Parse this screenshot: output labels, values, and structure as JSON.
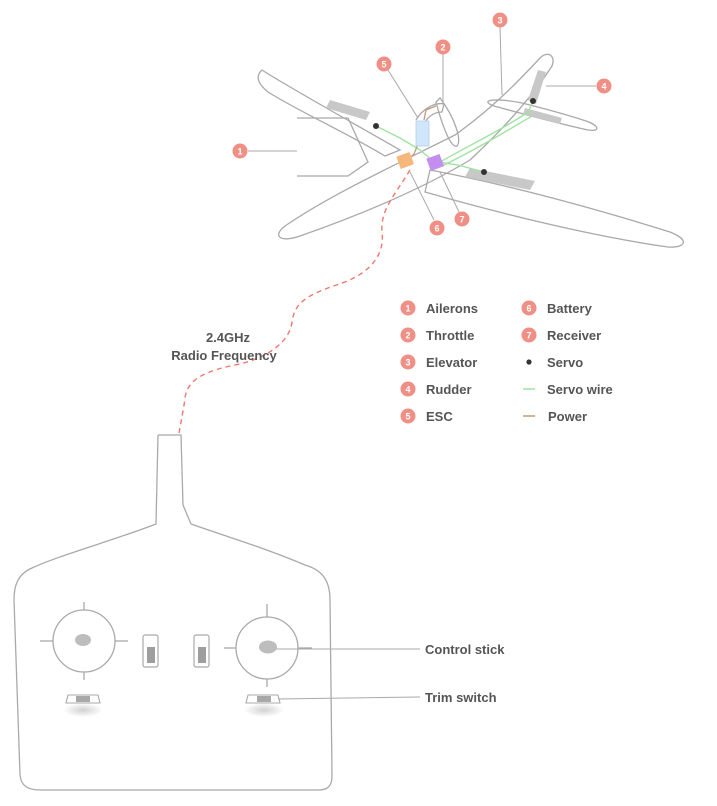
{
  "colors": {
    "badge": "#f08f86",
    "servo_wire": "#9fe3a0",
    "power": "#c49a7c",
    "radio_link": "#f0776e",
    "outline": "#a9a9a9",
    "esc": "#cfe6fb",
    "battery": "#f6b77a",
    "receiver": "#c48ef0",
    "surface": "#c8c8c8"
  },
  "radio": {
    "line1": "2.4GHz",
    "line2": "Radio Frequency"
  },
  "legend": {
    "items": [
      {
        "num": "1",
        "label": "Ailerons"
      },
      {
        "num": "2",
        "label": "Throttle"
      },
      {
        "num": "3",
        "label": "Elevator"
      },
      {
        "num": "4",
        "label": "Rudder"
      },
      {
        "num": "5",
        "label": "ESC"
      },
      {
        "num": "6",
        "label": "Battery"
      },
      {
        "num": "7",
        "label": "Receiver"
      }
    ],
    "servo": "Servo",
    "servo_wire": "Servo wire",
    "power": "Power"
  },
  "callouts": {
    "ailerons": "1",
    "throttle": "2",
    "elevator": "3",
    "rudder": "4",
    "esc": "5",
    "battery": "6",
    "receiver": "7"
  },
  "transmitter": {
    "control_stick": "Control stick",
    "trim_switch": "Trim switch"
  }
}
